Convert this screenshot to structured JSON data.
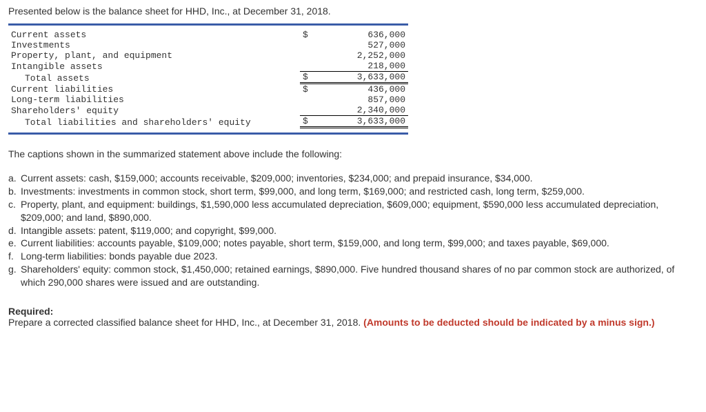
{
  "intro": "Presented below is the balance sheet for HHD, Inc., at December 31, 2018.",
  "balance_sheet": {
    "border_color": "#3a5ca8",
    "font_family": "Courier New",
    "rows": [
      {
        "label": "Current assets",
        "symbol": "$",
        "amount": "636,000",
        "indent": false,
        "rule": "none"
      },
      {
        "label": "Investments",
        "symbol": "",
        "amount": "527,000",
        "indent": false,
        "rule": "none"
      },
      {
        "label": "Property, plant, and equipment",
        "symbol": "",
        "amount": "2,252,000",
        "indent": false,
        "rule": "none"
      },
      {
        "label": "Intangible assets",
        "symbol": "",
        "amount": "218,000",
        "indent": false,
        "rule": "none"
      },
      {
        "label": "Total assets",
        "symbol": "$",
        "amount": "3,633,000",
        "indent": true,
        "rule": "total"
      },
      {
        "label": "Current liabilities",
        "symbol": "$",
        "amount": "436,000",
        "indent": false,
        "rule": "none"
      },
      {
        "label": "Long-term liabilities",
        "symbol": "",
        "amount": "857,000",
        "indent": false,
        "rule": "none"
      },
      {
        "label": "Shareholders' equity",
        "symbol": "",
        "amount": "2,340,000",
        "indent": false,
        "rule": "none"
      },
      {
        "label": "Total liabilities and shareholders' equity",
        "symbol": "$",
        "amount": "3,633,000",
        "indent": true,
        "rule": "total"
      }
    ]
  },
  "caption_intro": "The captions shown in the summarized statement above include the following:",
  "details": [
    {
      "letter": "a.",
      "text": "Current assets: cash, $159,000; accounts receivable, $209,000; inventories, $234,000; and prepaid insurance, $34,000."
    },
    {
      "letter": "b.",
      "text": "Investments: investments in common stock, short term, $99,000, and long term, $169,000; and restricted cash, long term, $259,000."
    },
    {
      "letter": "c.",
      "text": "Property, plant, and equipment: buildings, $1,590,000 less accumulated depreciation, $609,000; equipment, $590,000 less accumulated depreciation, $209,000; and land, $890,000."
    },
    {
      "letter": "d.",
      "text": "Intangible assets: patent, $119,000; and copyright, $99,000."
    },
    {
      "letter": "e.",
      "text": "Current liabilities: accounts payable, $109,000; notes payable, short term, $159,000, and long term, $99,000; and taxes payable, $69,000."
    },
    {
      "letter": "f.",
      "text": "Long-term liabilities: bonds payable due 2023."
    },
    {
      "letter": "g.",
      "text": "Shareholders' equity: common stock, $1,450,000; retained earnings, $890,000. Five hundred thousand shares of no par common stock are authorized, of which 290,000 shares were issued and are outstanding."
    }
  ],
  "required": {
    "heading": "Required:",
    "text_before": "Prepare a corrected classified balance sheet for HHD, Inc., at December 31, 2018. ",
    "text_red": "(Amounts to be deducted should be indicated by a minus sign.)"
  }
}
